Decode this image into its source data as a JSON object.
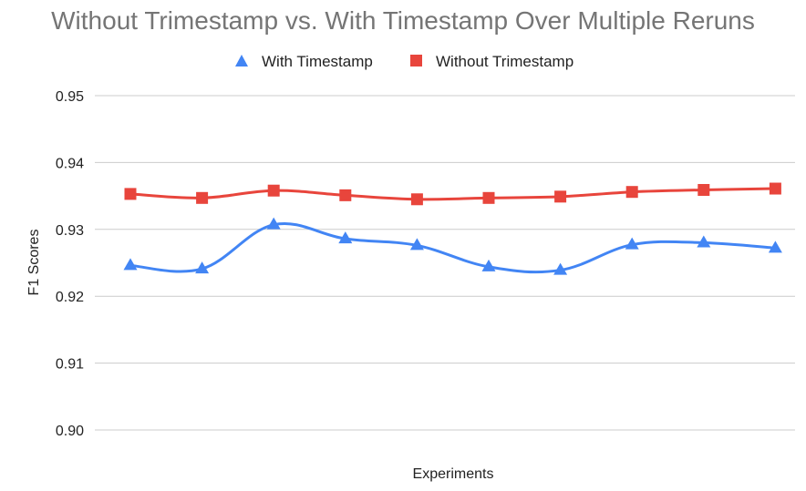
{
  "chart_data": {
    "type": "line",
    "title": "Without Trimestamp vs. With Timestamp Over Multiple Reruns",
    "xlabel": "Experiments",
    "ylabel": "F1 Scores",
    "ylim": [
      0.9,
      0.95
    ],
    "yticks": [
      "0.90",
      "0.91",
      "0.92",
      "0.93",
      "0.94",
      "0.95"
    ],
    "x": [
      1,
      2,
      3,
      4,
      5,
      6,
      7,
      8,
      9,
      10
    ],
    "grid": true,
    "legend_position": "top",
    "series": [
      {
        "name": "With Timestamp",
        "color": "#4285f4",
        "marker": "triangle",
        "values": [
          0.9246,
          0.9241,
          0.9307,
          0.9286,
          0.9276,
          0.9244,
          0.9239,
          0.9277,
          0.928,
          0.9272
        ]
      },
      {
        "name": "Without Trimestamp",
        "color": "#e8453c",
        "marker": "square",
        "values": [
          0.9353,
          0.9347,
          0.9358,
          0.9351,
          0.9345,
          0.9347,
          0.9349,
          0.9356,
          0.9359,
          0.9361
        ]
      }
    ]
  }
}
